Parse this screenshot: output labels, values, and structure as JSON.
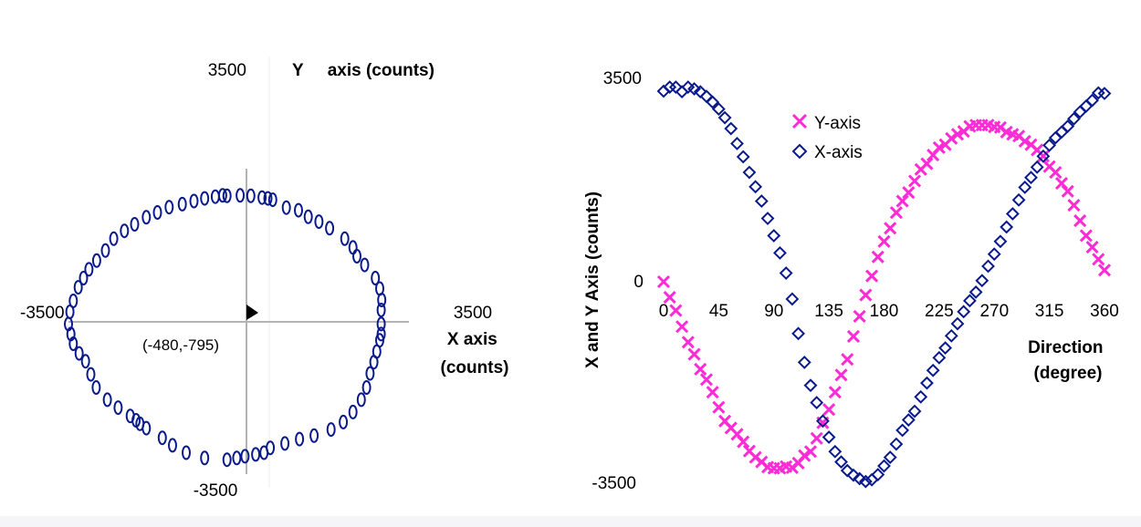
{
  "colors": {
    "x_series": "#0a1a8c",
    "y_series": "#ff2bd6",
    "axis_line": "#b3b3b3",
    "marker_fill": "#000000",
    "text": "#000000"
  },
  "chart_data": [
    {
      "type": "scatter",
      "title": "",
      "xlabel": "X axis (counts)",
      "ylabel": "Y     axis (counts)",
      "xlim": [
        -3500,
        3500
      ],
      "ylim": [
        -3500,
        3500
      ],
      "x_tick_labels": [
        "-3500",
        "3500"
      ],
      "y_tick_labels": [
        "3500",
        "-3500"
      ],
      "grid": false,
      "annotation": {
        "text": "(-480,-795)",
        "x": -480,
        "y": -795
      },
      "series": [
        {
          "marker": "ellipse",
          "color": "#0a1a8c",
          "points": [
            [
              -240,
              2880
            ],
            [
              30,
              2890
            ],
            [
              250,
              2880
            ],
            [
              480,
              2840
            ],
            [
              600,
              2820
            ],
            [
              700,
              2790
            ],
            [
              980,
              2610
            ],
            [
              1230,
              2550
            ],
            [
              1430,
              2400
            ],
            [
              1650,
              2290
            ],
            [
              1870,
              2140
            ],
            [
              2180,
              1900
            ],
            [
              2350,
              1700
            ],
            [
              2430,
              1500
            ],
            [
              2590,
              1300
            ],
            [
              2810,
              1000
            ],
            [
              2900,
              760
            ],
            [
              2940,
              500
            ],
            [
              2930,
              270
            ],
            [
              2930,
              -50
            ],
            [
              2930,
              -280
            ],
            [
              2900,
              -420
            ],
            [
              2840,
              -680
            ],
            [
              2780,
              -920
            ],
            [
              2700,
              -1180
            ],
            [
              2630,
              -1500
            ],
            [
              2520,
              -1780
            ],
            [
              2350,
              -2060
            ],
            [
              2150,
              -2290
            ],
            [
              1900,
              -2460
            ],
            [
              1550,
              -2600
            ],
            [
              1250,
              -2680
            ],
            [
              950,
              -2780
            ],
            [
              650,
              -2880
            ],
            [
              520,
              -2990
            ],
            [
              350,
              -3030
            ],
            [
              130,
              -3070
            ],
            [
              -40,
              -3110
            ],
            [
              -240,
              -3150
            ],
            [
              -700,
              -3110
            ],
            [
              -1080,
              -2990
            ],
            [
              -1360,
              -2820
            ],
            [
              -1570,
              -2650
            ],
            [
              -1900,
              -2430
            ],
            [
              -2030,
              -2330
            ],
            [
              -2110,
              -2250
            ],
            [
              -2230,
              -2150
            ],
            [
              -2480,
              -1960
            ],
            [
              -2700,
              -1780
            ],
            [
              -2930,
              -1500
            ],
            [
              -3040,
              -1200
            ],
            [
              -3150,
              -900
            ],
            [
              -3280,
              -720
            ],
            [
              -3400,
              -500
            ],
            [
              -3450,
              -280
            ],
            [
              -3500,
              -50
            ],
            [
              -3470,
              230
            ],
            [
              -3400,
              480
            ],
            [
              -3300,
              790
            ],
            [
              -3190,
              1000
            ],
            [
              -3080,
              1200
            ],
            [
              -2920,
              1400
            ],
            [
              -2740,
              1630
            ],
            [
              -2570,
              1900
            ],
            [
              -2350,
              2080
            ],
            [
              -2140,
              2230
            ],
            [
              -1900,
              2390
            ],
            [
              -1670,
              2500
            ],
            [
              -1430,
              2620
            ],
            [
              -1160,
              2690
            ],
            [
              -920,
              2760
            ],
            [
              -700,
              2820
            ],
            [
              -480,
              2860
            ],
            [
              -330,
              2890
            ]
          ]
        }
      ]
    },
    {
      "type": "scatter",
      "title": "",
      "xlabel": "Direction (degree)",
      "ylabel": "X and Y Axis (counts)",
      "xlim": [
        0,
        360
      ],
      "ylim": [
        -3500,
        3500
      ],
      "x_ticks": [
        0,
        45,
        90,
        135,
        180,
        225,
        270,
        315,
        360
      ],
      "y_tick_labels": [
        "3500",
        "0",
        "-3500"
      ],
      "grid": false,
      "legend": {
        "position": "top-left",
        "entries": [
          "Y-axis",
          "X-axis"
        ]
      },
      "series": [
        {
          "name": "Y-axis",
          "marker": "x",
          "color": "#ff2bd6",
          "points": [
            [
              0,
              0
            ],
            [
              5,
              -270
            ],
            [
              10,
              -500
            ],
            [
              15,
              -780
            ],
            [
              20,
              -1050
            ],
            [
              25,
              -1260
            ],
            [
              30,
              -1520
            ],
            [
              35,
              -1700
            ],
            [
              40,
              -1920
            ],
            [
              45,
              -2180
            ],
            [
              50,
              -2420
            ],
            [
              55,
              -2540
            ],
            [
              60,
              -2650
            ],
            [
              65,
              -2780
            ],
            [
              70,
              -2940
            ],
            [
              75,
              -3050
            ],
            [
              80,
              -3130
            ],
            [
              85,
              -3220
            ],
            [
              90,
              -3240
            ],
            [
              95,
              -3240
            ],
            [
              100,
              -3210
            ],
            [
              105,
              -3230
            ],
            [
              110,
              -3150
            ],
            [
              115,
              -3020
            ],
            [
              120,
              -2950
            ],
            [
              125,
              -2720
            ],
            [
              130,
              -2450
            ],
            [
              135,
              -2220
            ],
            [
              140,
              -1920
            ],
            [
              145,
              -1620
            ],
            [
              150,
              -1350
            ],
            [
              155,
              -950
            ],
            [
              160,
              -600
            ],
            [
              165,
              -230
            ],
            [
              170,
              100
            ],
            [
              175,
              430
            ],
            [
              180,
              700
            ],
            [
              185,
              930
            ],
            [
              190,
              1200
            ],
            [
              195,
              1400
            ],
            [
              200,
              1550
            ],
            [
              205,
              1750
            ],
            [
              210,
              1950
            ],
            [
              215,
              2050
            ],
            [
              220,
              2200
            ],
            [
              225,
              2330
            ],
            [
              230,
              2380
            ],
            [
              235,
              2490
            ],
            [
              240,
              2560
            ],
            [
              245,
              2610
            ],
            [
              250,
              2700
            ],
            [
              255,
              2720
            ],
            [
              260,
              2720
            ],
            [
              265,
              2720
            ],
            [
              270,
              2690
            ],
            [
              275,
              2680
            ],
            [
              280,
              2600
            ],
            [
              285,
              2560
            ],
            [
              290,
              2530
            ],
            [
              295,
              2440
            ],
            [
              300,
              2380
            ],
            [
              305,
              2290
            ],
            [
              310,
              2180
            ],
            [
              315,
              2000
            ],
            [
              320,
              1900
            ],
            [
              325,
              1710
            ],
            [
              330,
              1570
            ],
            [
              335,
              1330
            ],
            [
              340,
              1060
            ],
            [
              345,
              800
            ],
            [
              350,
              600
            ],
            [
              355,
              390
            ],
            [
              360,
              200
            ]
          ]
        },
        {
          "name": "X-axis",
          "marker": "diamond",
          "color": "#0a1a8c",
          "points": [
            [
              0,
              3310
            ],
            [
              5,
              3380
            ],
            [
              10,
              3380
            ],
            [
              15,
              3300
            ],
            [
              20,
              3380
            ],
            [
              25,
              3350
            ],
            [
              30,
              3300
            ],
            [
              35,
              3220
            ],
            [
              40,
              3120
            ],
            [
              45,
              3000
            ],
            [
              50,
              2850
            ],
            [
              55,
              2660
            ],
            [
              60,
              2400
            ],
            [
              65,
              2170
            ],
            [
              70,
              1900
            ],
            [
              75,
              1650
            ],
            [
              80,
              1400
            ],
            [
              85,
              1100
            ],
            [
              90,
              800
            ],
            [
              95,
              500
            ],
            [
              100,
              150
            ],
            [
              105,
              -300
            ],
            [
              110,
              -900
            ],
            [
              115,
              -1400
            ],
            [
              120,
              -1800
            ],
            [
              125,
              -2100
            ],
            [
              130,
              -2420
            ],
            [
              135,
              -2700
            ],
            [
              140,
              -2950
            ],
            [
              145,
              -3130
            ],
            [
              150,
              -3280
            ],
            [
              155,
              -3360
            ],
            [
              160,
              -3420
            ],
            [
              165,
              -3470
            ],
            [
              170,
              -3440
            ],
            [
              175,
              -3350
            ],
            [
              180,
              -3200
            ],
            [
              185,
              -3050
            ],
            [
              190,
              -2820
            ],
            [
              195,
              -2580
            ],
            [
              200,
              -2400
            ],
            [
              205,
              -2250
            ],
            [
              210,
              -2000
            ],
            [
              215,
              -1760
            ],
            [
              220,
              -1540
            ],
            [
              225,
              -1320
            ],
            [
              230,
              -1150
            ],
            [
              235,
              -940
            ],
            [
              240,
              -730
            ],
            [
              245,
              -520
            ],
            [
              250,
              -330
            ],
            [
              255,
              -180
            ],
            [
              260,
              20
            ],
            [
              265,
              270
            ],
            [
              270,
              480
            ],
            [
              275,
              700
            ],
            [
              280,
              950
            ],
            [
              285,
              1180
            ],
            [
              290,
              1420
            ],
            [
              295,
              1640
            ],
            [
              300,
              1810
            ],
            [
              305,
              1990
            ],
            [
              310,
              2180
            ],
            [
              315,
              2370
            ],
            [
              320,
              2500
            ],
            [
              325,
              2600
            ],
            [
              330,
              2700
            ],
            [
              335,
              2830
            ],
            [
              340,
              2950
            ],
            [
              345,
              3050
            ],
            [
              350,
              3150
            ],
            [
              355,
              3280
            ],
            [
              360,
              3270
            ]
          ]
        }
      ]
    }
  ]
}
